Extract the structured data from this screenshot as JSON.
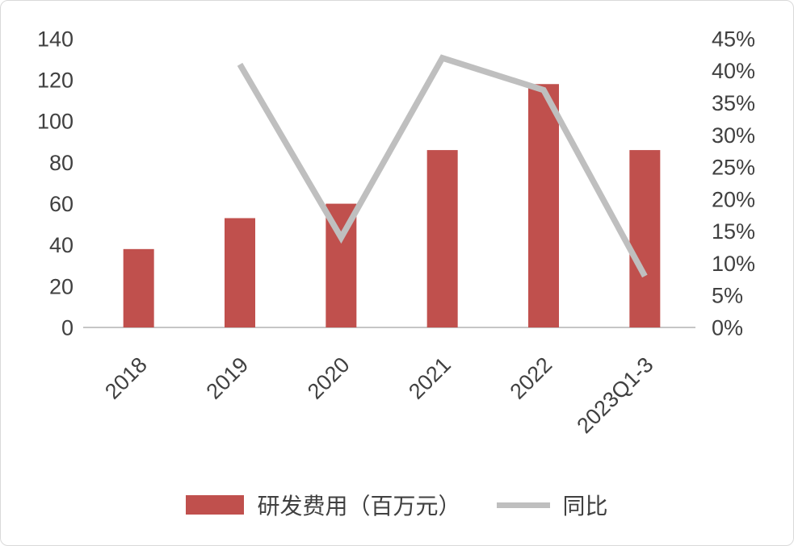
{
  "colors": {
    "bar": "#c0504d",
    "line": "#bfbfbf",
    "text": "#404040",
    "axis": "#c6c6c6",
    "background": "#ffffff",
    "border": "#d9d9d9"
  },
  "chart_data": {
    "type": "bar",
    "subtype": "combo-bar-line-dual-axis",
    "categories": [
      "2018",
      "2019",
      "2020",
      "2021",
      "2022",
      "2023Q1-3"
    ],
    "series": [
      {
        "name": "研发费用（百万元）",
        "type": "bar",
        "axis": "left",
        "values": [
          38,
          53,
          60,
          86,
          118,
          86
        ]
      },
      {
        "name": "同比",
        "type": "line",
        "axis": "right",
        "values": [
          null,
          41,
          14,
          42,
          37,
          8
        ],
        "unit": "%"
      }
    ],
    "left_axis": {
      "min": 0,
      "max": 140,
      "step": 20,
      "ticks": [
        "0",
        "20",
        "40",
        "60",
        "80",
        "100",
        "120",
        "140"
      ]
    },
    "right_axis": {
      "min": 0,
      "max": 45,
      "step": 5,
      "ticks": [
        "0%",
        "5%",
        "10%",
        "15%",
        "20%",
        "25%",
        "30%",
        "35%",
        "40%",
        "45%"
      ]
    },
    "title": "",
    "xlabel": "",
    "ylabel": "",
    "grid": false,
    "legend_position": "bottom",
    "legend": [
      {
        "label": "研发费用（百万元）",
        "swatch": "bar"
      },
      {
        "label": "同比",
        "swatch": "line"
      }
    ]
  }
}
